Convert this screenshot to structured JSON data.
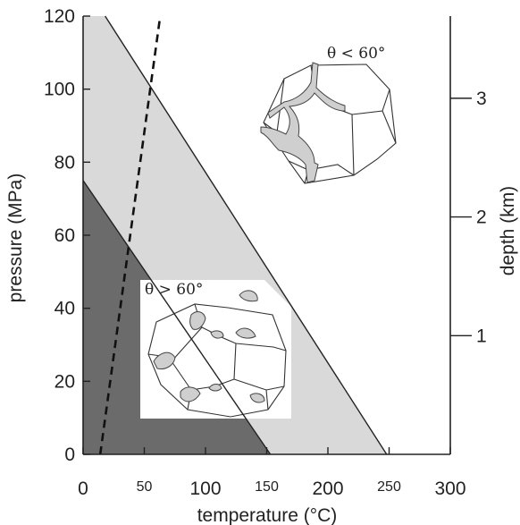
{
  "chart_data": {
    "type": "area",
    "xlabel": "temperature (°C)",
    "ylabel": "pressure (MPa)",
    "y2label": "depth (km)",
    "xlim": [
      0,
      300
    ],
    "ylim": [
      0,
      120
    ],
    "x_ticks": [
      {
        "value": 0,
        "label": "0",
        "size": "large"
      },
      {
        "value": 50,
        "label": "50",
        "size": "small"
      },
      {
        "value": 100,
        "label": "100",
        "size": "large"
      },
      {
        "value": 150,
        "label": "150",
        "size": "small"
      },
      {
        "value": 200,
        "label": "200",
        "size": "large"
      },
      {
        "value": 250,
        "label": "250",
        "size": "small"
      },
      {
        "value": 300,
        "label": "300",
        "size": "large"
      }
    ],
    "y_ticks": [
      0,
      20,
      40,
      60,
      80,
      100,
      120
    ],
    "depth_ticks": [
      {
        "pressure": 32.5,
        "label": "1"
      },
      {
        "pressure": 65.0,
        "label": "2"
      },
      {
        "pressure": 97.5,
        "label": "3"
      }
    ],
    "regions": [
      {
        "fill": "#d9d9d9",
        "polygon": [
          [
            0,
            0
          ],
          [
            0,
            120
          ],
          [
            18,
            120
          ],
          [
            248,
            0
          ]
        ]
      },
      {
        "fill": "#6b6b6b",
        "polygon": [
          [
            0,
            0
          ],
          [
            0,
            75
          ],
          [
            153,
            0
          ]
        ]
      }
    ],
    "boundary_lines": [
      {
        "points": [
          [
            18,
            120
          ],
          [
            248,
            0
          ]
        ]
      },
      {
        "points": [
          [
            0,
            75
          ],
          [
            153,
            0
          ]
        ]
      }
    ],
    "geotherm": {
      "style": "dashed",
      "points": [
        [
          14,
          0
        ],
        [
          63,
          120
        ]
      ]
    },
    "insets": [
      {
        "label": "θ < 60°"
      },
      {
        "label": "θ > 60°"
      }
    ]
  }
}
